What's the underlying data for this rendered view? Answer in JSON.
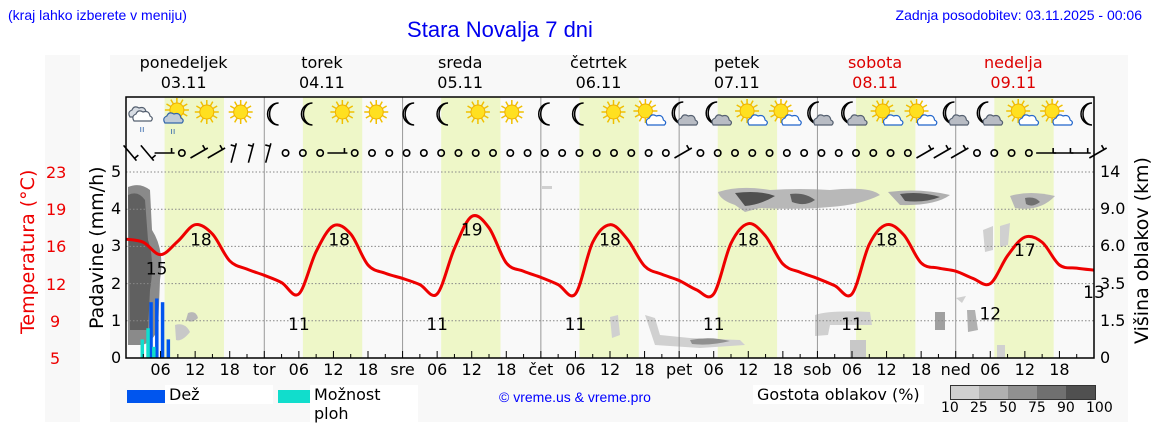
{
  "header": {
    "region_hint": "(kraj lahko izberete v meniju)",
    "title": "Stara Novalja 7 dni",
    "updated": "Zadnja posodobitev: 03.11.2025 - 00:06"
  },
  "days": [
    {
      "name": "ponedeljek",
      "date": "03.11",
      "weekend": false
    },
    {
      "name": "torek",
      "date": "04.11",
      "weekend": false
    },
    {
      "name": "sreda",
      "date": "05.11",
      "weekend": false
    },
    {
      "name": "četrtek",
      "date": "06.11",
      "weekend": false
    },
    {
      "name": "petek",
      "date": "07.11",
      "weekend": false
    },
    {
      "name": "sobota",
      "date": "08.11",
      "weekend": true
    },
    {
      "name": "nedelja",
      "date": "09.11",
      "weekend": true
    }
  ],
  "x_axis": {
    "labels": [
      "06",
      "12",
      "18",
      "tor",
      "06",
      "12",
      "18",
      "sre",
      "06",
      "12",
      "18",
      "čet",
      "06",
      "12",
      "18",
      "pet",
      "06",
      "12",
      "18",
      "sob",
      "06",
      "12",
      "18",
      "ned",
      "06",
      "12",
      "18"
    ]
  },
  "axes": {
    "left_temp_label": "Temperatura (°C)",
    "left_temp_ticks": [
      "23",
      "19",
      "16",
      "12",
      "9",
      "5"
    ],
    "left_precip_label": "Padavine (mm/h)",
    "left_precip_ticks": [
      "5",
      "4",
      "3",
      "2",
      "1",
      "0"
    ],
    "right_label": "Višina oblakov (km)",
    "right_ticks": [
      "14",
      "9.0",
      "6.0",
      "3.5",
      "1.5",
      "0"
    ]
  },
  "weather_icons": [
    "rain-cloud",
    "rain-cloud-sun",
    "sun",
    "sun",
    "moon",
    "moon",
    "sun",
    "sun",
    "moon",
    "moon",
    "sun",
    "sun",
    "moon",
    "moon",
    "sun",
    "sun-cloud",
    "moon-cloud",
    "moon-cloud",
    "sun-cloud",
    "sun-cloud",
    "moon-cloud",
    "moon-cloud",
    "sun-cloud",
    "sun-cloud",
    "moon-cloud",
    "moon-cloud",
    "sun-cloud",
    "sun-cloud",
    "moon"
  ],
  "legend": {
    "rain_label": "Dež",
    "rain_color": "#0055ee",
    "showers_label": "Možnost ploh",
    "showers_color": "#11ddcc",
    "copyright": "© vreme.us & vreme.pro",
    "cloud_density_label": "Gostota oblakov (%)",
    "cloud_density_scale": [
      "10",
      "25",
      "50",
      "75",
      "90",
      "100"
    ],
    "cloud_density_colors": [
      "#d0d0d0",
      "#b0b0b0",
      "#909090",
      "#707070",
      "#505050"
    ]
  },
  "colors": {
    "temperature_line": "#ee0000",
    "daylight_band": "#eef7c8",
    "panel_bg": "#f8f8f8",
    "title_blue": "#0000ee",
    "weekend_red": "#dd0000"
  },
  "chart_data": {
    "type": "line",
    "title": "Stara Novalja 7 dni",
    "xlabel": "",
    "ylabel": "Temperatura (°C)",
    "ylim": [
      5,
      23
    ],
    "secondary_axes": {
      "precipitation_mm_h": [
        0,
        5
      ],
      "cloud_height_km": [
        "0",
        "1.5",
        "3.5",
        "6.0",
        "9.0",
        "14"
      ]
    },
    "series": [
      {
        "name": "Temperatura",
        "x_hours": [
          0,
          3,
          6,
          9,
          12,
          15,
          18,
          21,
          24,
          27,
          30,
          33,
          36,
          39,
          42,
          45,
          48,
          51,
          54,
          57,
          60,
          63,
          66,
          69,
          72,
          75,
          78,
          81,
          84,
          87,
          90,
          93,
          96,
          99,
          102,
          105,
          108,
          111,
          114,
          117,
          120,
          123,
          126,
          129,
          132,
          135,
          138,
          141,
          144,
          147,
          150,
          153,
          156,
          159,
          162,
          165,
          168
        ],
        "values": [
          16.5,
          16.2,
          15.0,
          16.3,
          17.9,
          17.0,
          14.4,
          13.6,
          13.0,
          12.3,
          11.2,
          15.3,
          17.8,
          17.0,
          14.0,
          13.2,
          12.7,
          12.1,
          11.2,
          15.6,
          18.7,
          17.6,
          14.2,
          13.4,
          12.8,
          12.1,
          11.2,
          16.2,
          17.9,
          16.5,
          13.9,
          13.1,
          12.5,
          11.6,
          11.2,
          16.1,
          18.0,
          16.8,
          14.1,
          13.3,
          12.7,
          12.0,
          11.2,
          16.0,
          17.9,
          16.9,
          14.2,
          13.7,
          13.4,
          12.7,
          12.2,
          14.9,
          16.7,
          16.2,
          14.0,
          13.7,
          13.5
        ]
      },
      {
        "name": "Dež (mm/h)",
        "x_hours": [
          4,
          5,
          6,
          7,
          8
        ],
        "values": [
          1.5,
          1.6,
          1.5,
          0.5,
          0
        ]
      },
      {
        "name": "Možnost ploh (mm/h)",
        "x_hours": [
          3,
          4,
          5
        ],
        "values": [
          0.5,
          0.8,
          0.3
        ]
      }
    ],
    "annotations": [
      {
        "x_hour": 6,
        "label": "15"
      },
      {
        "x_hour": 13,
        "label": "18"
      },
      {
        "x_hour": 30,
        "label": "11"
      },
      {
        "x_hour": 37,
        "label": "18"
      },
      {
        "x_hour": 54,
        "label": "11"
      },
      {
        "x_hour": 60,
        "label": "19"
      },
      {
        "x_hour": 78,
        "label": "11"
      },
      {
        "x_hour": 84,
        "label": "18"
      },
      {
        "x_hour": 102,
        "label": "11"
      },
      {
        "x_hour": 108,
        "label": "18"
      },
      {
        "x_hour": 126,
        "label": "11"
      },
      {
        "x_hour": 132,
        "label": "18"
      },
      {
        "x_hour": 150,
        "label": "12"
      },
      {
        "x_hour": 156,
        "label": "17"
      },
      {
        "x_hour": 168,
        "label": "13"
      }
    ],
    "grid": true,
    "legend_position": "bottom"
  }
}
